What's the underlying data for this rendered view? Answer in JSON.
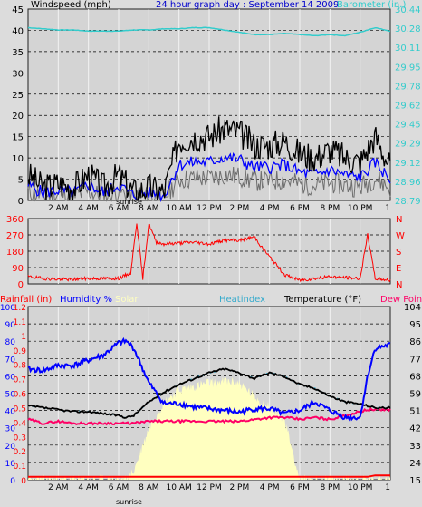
{
  "title": "24 hour graph day : September 14 2009",
  "panel1": {
    "left_label": "Windspeed (mph)",
    "right_label": "Barometer (in.)",
    "left_ticks": [
      "45",
      "40",
      "35",
      "30",
      "25",
      "20",
      "15",
      "10",
      "5",
      "0"
    ],
    "right_ticks": [
      "30.44",
      "30.28",
      "30.11",
      "29.95",
      "29.78",
      "29.62",
      "29.45",
      "29.29",
      "29.12",
      "28.96",
      "28.79"
    ]
  },
  "panel2": {
    "left_ticks": [
      "360",
      "270",
      "180",
      "90",
      "0"
    ],
    "right_ticks": [
      "N",
      "W",
      "S",
      "E",
      "N"
    ]
  },
  "panel3": {
    "rain_label": "Rainfall (in)",
    "humidity_label": "Humidity %",
    "solar_label": "Solar",
    "heatindex_label": "Heatindex",
    "temp_label": "Temperature (°F)",
    "dew_label": "Dew Point",
    "humidity_ticks": [
      "100",
      "90",
      "80",
      "70",
      "60",
      "50",
      "40",
      "30",
      "20",
      "10",
      "0"
    ],
    "rain_ticks": [
      "1.2",
      "1.1",
      "1",
      "0.9",
      "0.8",
      "0.7",
      "0.6",
      "0.5",
      "0.4",
      "0.3",
      "0.2",
      "0.1",
      "0"
    ],
    "temp_ticks": [
      "104",
      "95",
      "86",
      "77",
      "68",
      "59",
      "51",
      "42",
      "33",
      "24",
      "15"
    ]
  },
  "x_labels": [
    "2 AM",
    "4 AM",
    "6 AM",
    "8 AM",
    "10 AM",
    "12 PM",
    "2 PM",
    "4 PM",
    "6 PM",
    "8 PM",
    "10 PM",
    "1"
  ],
  "sunrise_label": "sunrise",
  "colors": {
    "bg": "#dcdcdc",
    "plot_bg": "#d4d4d4",
    "wind": "#000000",
    "gust_avg": "#0000ff",
    "wind_gray": "#6e6e6e",
    "barometer": "#33cccc",
    "direction": "#ff0000",
    "humidity": "#0000ff",
    "heatindex": "#33aacc",
    "temperature": "#000000",
    "dewpoint": "#ff0066",
    "solar": "#ffffc0",
    "rain": "#ff0000",
    "title": "#0000cc"
  },
  "chart_data": [
    {
      "type": "line",
      "name": "wind_barometer",
      "x_hours": [
        0,
        1,
        2,
        3,
        4,
        5,
        6,
        7,
        8,
        9,
        10,
        11,
        12,
        13,
        14,
        15,
        16,
        17,
        18,
        19,
        20,
        21,
        22,
        23,
        24
      ],
      "series": [
        {
          "name": "Windspeed (mph)",
          "values": [
            6,
            3,
            4,
            3,
            6,
            3,
            6,
            2,
            3,
            2,
            14,
            15,
            15,
            17,
            16,
            13,
            13,
            14,
            11,
            10,
            12,
            10,
            9,
            15,
            8
          ]
        },
        {
          "name": "Barometer (in.)",
          "values": [
            30.28,
            30.27,
            30.26,
            30.26,
            30.25,
            30.25,
            30.25,
            30.26,
            30.26,
            30.27,
            30.27,
            30.28,
            30.28,
            30.26,
            30.24,
            30.22,
            30.22,
            30.23,
            30.22,
            30.21,
            30.22,
            30.21,
            30.24,
            30.28,
            30.25
          ]
        }
      ],
      "ylim_left": [
        0,
        45
      ],
      "ylim_right": [
        28.79,
        30.44
      ]
    },
    {
      "type": "line",
      "name": "wind_direction",
      "x_hours": [
        0,
        1,
        2,
        3,
        4,
        5,
        6,
        6.8,
        7.2,
        7.6,
        8,
        8.5,
        9,
        10,
        11,
        12,
        13,
        14,
        15,
        15.5,
        16,
        17,
        18,
        19,
        20,
        21,
        22,
        22.5,
        23,
        24
      ],
      "series": [
        {
          "name": "Direction",
          "values": [
            40,
            30,
            25,
            25,
            30,
            30,
            30,
            60,
            340,
            30,
            330,
            230,
            220,
            225,
            230,
            220,
            240,
            240,
            260,
            200,
            150,
            50,
            20,
            30,
            40,
            35,
            30,
            270,
            30,
            20
          ]
        }
      ],
      "ylim": [
        0,
        360
      ]
    },
    {
      "type": "line",
      "name": "temp_humidity",
      "x_hours": [
        0,
        1,
        2,
        3,
        4,
        5,
        6,
        6.5,
        7,
        8,
        9,
        10,
        11,
        12,
        13,
        14,
        15,
        16,
        17,
        18,
        19,
        20,
        21,
        22,
        22.5,
        23,
        24
      ],
      "series": [
        {
          "name": "Humidity %",
          "values": [
            64,
            63,
            66,
            66,
            69,
            72,
            79,
            80,
            76,
            56,
            44,
            44,
            42,
            41,
            40,
            39,
            41,
            41,
            38,
            40,
            45,
            40,
            36,
            36,
            60,
            76,
            78
          ]
        },
        {
          "name": "Temperature (°F)",
          "values": [
            53,
            52,
            51,
            50,
            50,
            49,
            48,
            47,
            48,
            55,
            60,
            64,
            67,
            70,
            72,
            70,
            67,
            70,
            68,
            64,
            62,
            58,
            55,
            54,
            53,
            52,
            52
          ]
        },
        {
          "name": "Dew Point",
          "values": [
            46,
            44,
            45,
            44,
            44,
            44,
            44,
            44,
            44,
            45,
            45,
            45,
            45,
            45,
            45,
            45,
            46,
            47,
            47,
            46,
            47,
            46,
            48,
            50,
            51,
            51,
            51
          ]
        },
        {
          "name": "Solar",
          "values": [
            0,
            0,
            0,
            0,
            0,
            0,
            0,
            0,
            50,
            300,
            450,
            520,
            540,
            560,
            570,
            560,
            480,
            420,
            350,
            0,
            0,
            0,
            0,
            0,
            0,
            0,
            0
          ]
        },
        {
          "name": "Rainfall (in)",
          "values": [
            0.02,
            0.02,
            0.02,
            0.02,
            0.02,
            0.02,
            0.02,
            0.02,
            0.02,
            0.02,
            0.02,
            0.02,
            0.02,
            0.02,
            0.02,
            0.02,
            0.02,
            0.02,
            0.02,
            0.02,
            0.02,
            0.02,
            0.02,
            0.02,
            0.02,
            0.03,
            0.03
          ]
        }
      ],
      "ylim_humidity": [
        0,
        100
      ],
      "ylim_temp": [
        15,
        104
      ]
    }
  ]
}
